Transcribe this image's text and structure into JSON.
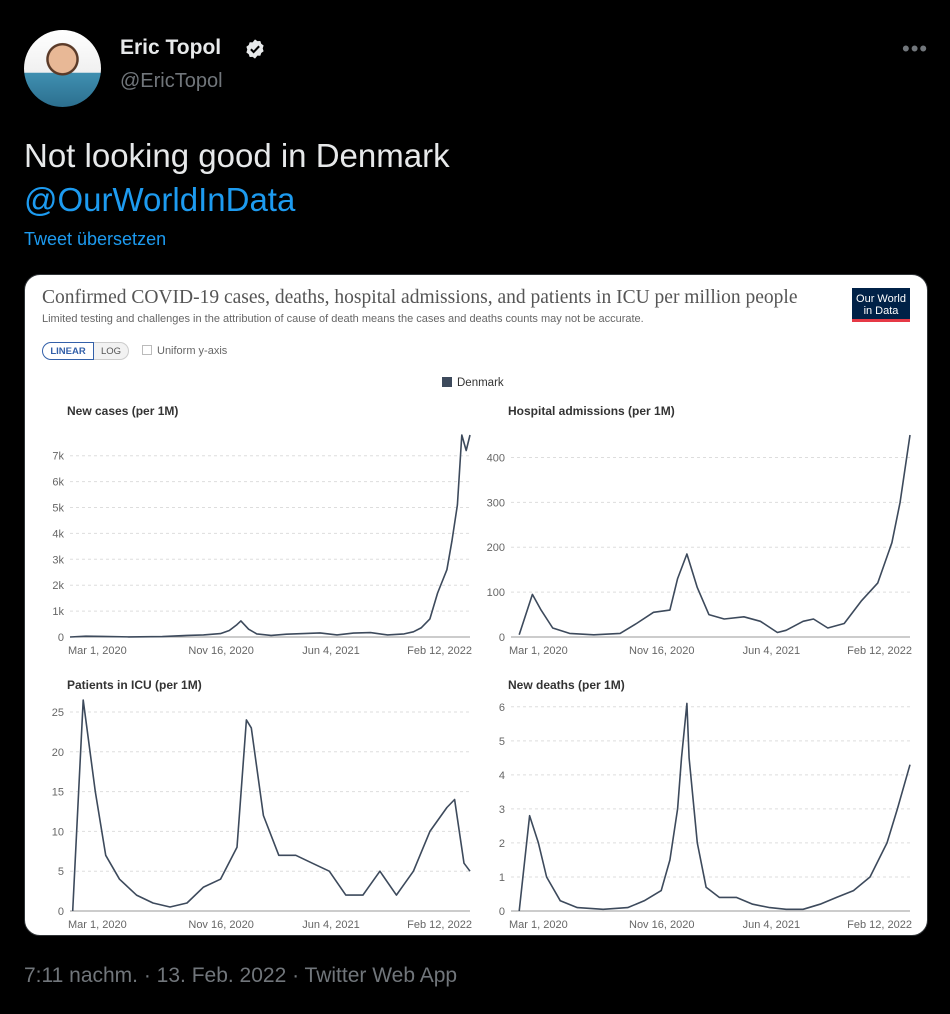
{
  "tweet": {
    "author_name": "Eric Topol",
    "author_handle": "@EricTopol",
    "more_icon": "more-horizontal-icon",
    "verified_icon": "verified-badge-icon",
    "text": "Not looking good in Denmark",
    "mention": "@OurWorldInData",
    "translate_label": "Tweet übersetzen",
    "footer": "7:11 nachm. · 13. Feb. 2022 · Twitter Web App",
    "colors": {
      "background": "#000000",
      "link": "#1d9bf0",
      "muted": "#71767b"
    }
  },
  "card": {
    "title": "Confirmed COVID-19 cases, deaths, hospital admissions, and patients in ICU per million people",
    "subtitle": "Limited testing and challenges in the attribution of cause of death means the cases and deaths counts may not be accurate.",
    "logo_text": "Our World in Data",
    "toggle_linear": "LINEAR",
    "toggle_log": "LOG",
    "uniform_label": "Uniform y-axis",
    "legend_label": "Denmark",
    "series_color": "#3d4a5c"
  },
  "chart_data": [
    {
      "type": "line",
      "title": "New cases (per 1M)",
      "x_ticks": [
        "Mar 1, 2020",
        "Nov 16, 2020",
        "Jun 4, 2021",
        "Feb 12, 2022"
      ],
      "y_ticks": [
        "0",
        "1k",
        "2k",
        "3k",
        "4k",
        "5k",
        "6k",
        "7k"
      ],
      "ylim": [
        0,
        7800
      ],
      "grid": true,
      "series": [
        {
          "name": "Denmark",
          "x": [
            "2020-02-15",
            "2020-03-15",
            "2020-04-15",
            "2020-06-01",
            "2020-08-01",
            "2020-09-15",
            "2020-10-15",
            "2020-11-15",
            "2020-12-01",
            "2020-12-15",
            "2020-12-22",
            "2021-01-05",
            "2021-01-20",
            "2021-02-15",
            "2021-03-15",
            "2021-04-15",
            "2021-05-15",
            "2021-06-15",
            "2021-07-15",
            "2021-08-15",
            "2021-09-15",
            "2021-10-15",
            "2021-11-01",
            "2021-11-15",
            "2021-12-01",
            "2021-12-15",
            "2022-01-01",
            "2022-01-10",
            "2022-01-20",
            "2022-01-28",
            "2022-02-05",
            "2022-02-12"
          ],
          "y": [
            0,
            30,
            25,
            5,
            15,
            60,
            80,
            130,
            250,
            480,
            620,
            300,
            120,
            60,
            110,
            130,
            160,
            80,
            150,
            170,
            80,
            120,
            200,
            350,
            700,
            1700,
            2600,
            3700,
            5100,
            7800,
            7200,
            7800
          ]
        }
      ]
    },
    {
      "type": "line",
      "title": "Hospital admissions (per 1M)",
      "x_ticks": [
        "Mar 1, 2020",
        "Nov 16, 2020",
        "Jun 4, 2021",
        "Feb 12, 2022"
      ],
      "y_ticks": [
        "0",
        "100",
        "200",
        "300",
        "400"
      ],
      "ylim": [
        0,
        450
      ],
      "grid": true,
      "series": [
        {
          "name": "Denmark",
          "x": [
            "2020-03-01",
            "2020-03-25",
            "2020-04-10",
            "2020-05-01",
            "2020-06-01",
            "2020-07-15",
            "2020-09-01",
            "2020-10-01",
            "2020-11-01",
            "2020-12-01",
            "2020-12-15",
            "2021-01-01",
            "2021-01-20",
            "2021-02-10",
            "2021-03-10",
            "2021-04-15",
            "2021-05-15",
            "2021-06-15",
            "2021-07-01",
            "2021-08-01",
            "2021-08-20",
            "2021-09-15",
            "2021-10-15",
            "2021-11-15",
            "2021-12-15",
            "2022-01-10",
            "2022-01-25",
            "2022-02-12"
          ],
          "y": [
            5,
            95,
            60,
            20,
            8,
            5,
            8,
            30,
            55,
            60,
            130,
            185,
            110,
            50,
            40,
            45,
            35,
            10,
            15,
            35,
            40,
            20,
            30,
            80,
            120,
            210,
            300,
            450
          ]
        }
      ]
    },
    {
      "type": "line",
      "title": "Patients in ICU (per 1M)",
      "x_ticks": [
        "Mar 1, 2020",
        "Nov 16, 2020",
        "Jun 4, 2021",
        "Feb 12, 2022"
      ],
      "y_ticks": [
        "0",
        "5",
        "10",
        "15",
        "20",
        "25"
      ],
      "ylim": [
        0,
        26.5
      ],
      "grid": true,
      "series": [
        {
          "name": "Denmark",
          "x": [
            "2020-02-20",
            "2020-03-10",
            "2020-04-01",
            "2020-04-20",
            "2020-05-15",
            "2020-06-15",
            "2020-07-15",
            "2020-08-15",
            "2020-09-15",
            "2020-10-15",
            "2020-11-15",
            "2020-12-15",
            "2021-01-01",
            "2021-01-10",
            "2021-02-01",
            "2021-03-01",
            "2021-04-01",
            "2021-05-01",
            "2021-06-01",
            "2021-07-01",
            "2021-08-01",
            "2021-09-01",
            "2021-10-01",
            "2021-11-01",
            "2021-12-01",
            "2022-01-01",
            "2022-01-15",
            "2022-02-01",
            "2022-02-12"
          ],
          "y": [
            0,
            26.5,
            15,
            7,
            4,
            2,
            1,
            0.5,
            1,
            3,
            4,
            8,
            24,
            23,
            12,
            7,
            7,
            6,
            5,
            2,
            2,
            5,
            2,
            5,
            10,
            13,
            14,
            6,
            5
          ]
        }
      ]
    },
    {
      "type": "line",
      "title": "New deaths (per 1M)",
      "x_ticks": [
        "Mar 1, 2020",
        "Nov 16, 2020",
        "Jun 4, 2021",
        "Feb 12, 2022"
      ],
      "y_ticks": [
        "0",
        "1",
        "2",
        "3",
        "4",
        "5",
        "6"
      ],
      "ylim": [
        0,
        6.2
      ],
      "grid": true,
      "series": [
        {
          "name": "Denmark",
          "x": [
            "2020-03-01",
            "2020-03-20",
            "2020-04-05",
            "2020-04-20",
            "2020-05-15",
            "2020-06-15",
            "2020-08-01",
            "2020-09-15",
            "2020-10-15",
            "2020-11-15",
            "2020-12-01",
            "2020-12-15",
            "2020-12-22",
            "2021-01-01",
            "2021-01-05",
            "2021-01-20",
            "2021-02-05",
            "2021-03-01",
            "2021-04-01",
            "2021-05-01",
            "2021-06-01",
            "2021-07-01",
            "2021-08-01",
            "2021-09-01",
            "2021-10-01",
            "2021-11-01",
            "2021-12-01",
            "2022-01-01",
            "2022-01-20",
            "2022-02-12"
          ],
          "y": [
            0,
            2.8,
            2,
            1,
            0.3,
            0.1,
            0.05,
            0.1,
            0.3,
            0.6,
            1.5,
            3,
            4.5,
            6.1,
            4.5,
            2,
            0.7,
            0.4,
            0.4,
            0.2,
            0.1,
            0.05,
            0.05,
            0.2,
            0.4,
            0.6,
            1,
            2,
            3,
            4.3
          ]
        }
      ]
    }
  ]
}
